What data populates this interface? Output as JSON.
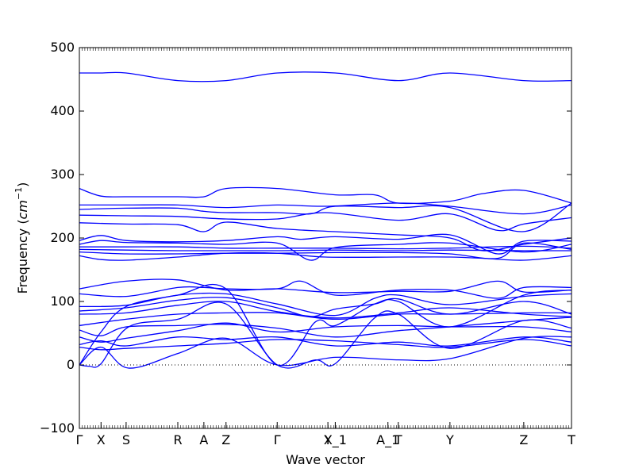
{
  "chart_data": {
    "type": "line",
    "title": "",
    "xlabel": "Wave vector",
    "ylabel_text": "Frequency (",
    "ylabel_unit": "cm",
    "ylabel_exp": "−1",
    "ylabel_close": ")",
    "ylim": [
      -100,
      500
    ],
    "yticks": [
      -100,
      0,
      100,
      200,
      300,
      400,
      500
    ],
    "xlim": [
      0,
      1
    ],
    "xticks": [
      {
        "label": "Γ",
        "x": 0.0
      },
      {
        "label": "X",
        "x": 0.044
      },
      {
        "label": "S",
        "x": 0.095
      },
      {
        "label": "R",
        "x": 0.2
      },
      {
        "label": "A",
        "x": 0.253
      },
      {
        "label": "Z",
        "x": 0.298
      },
      {
        "label": "Γ",
        "x": 0.402
      },
      {
        "label": "Y",
        "x": 0.505
      },
      {
        "label": "X_1",
        "x": 0.52
      },
      {
        "label": "A_1",
        "x": 0.627
      },
      {
        "label": "T",
        "x": 0.648
      },
      {
        "label": "Y",
        "x": 0.753
      },
      {
        "label": "Z",
        "x": 0.903
      },
      {
        "label": "T",
        "x": 1.0
      }
    ],
    "zero_line": 0,
    "line_color": "#0000ff",
    "series": [
      {
        "x": [
          0,
          0.044,
          0.095,
          0.2,
          0.298,
          0.402,
          0.52,
          0.648,
          0.753,
          0.903,
          1
        ],
        "y": [
          460,
          460,
          460,
          448,
          448,
          460,
          460,
          448,
          460,
          448,
          448
        ]
      },
      {
        "x": [
          0,
          0.044,
          0.095,
          0.2,
          0.253,
          0.298,
          0.402,
          0.52,
          0.6,
          0.648,
          0.753,
          0.82,
          0.903,
          1
        ],
        "y": [
          278,
          266,
          265,
          265,
          265,
          278,
          278,
          268,
          268,
          255,
          258,
          270,
          275,
          255
        ]
      },
      {
        "x": [
          0,
          0.095,
          0.2,
          0.298,
          0.402,
          0.5,
          0.648,
          0.753,
          0.903,
          1
        ],
        "y": [
          252,
          252,
          252,
          248,
          252,
          250,
          255,
          250,
          238,
          252
        ]
      },
      {
        "x": [
          0,
          0.095,
          0.2,
          0.253,
          0.298,
          0.402,
          0.47,
          0.52,
          0.648,
          0.753,
          0.9,
          1
        ],
        "y": [
          245,
          247,
          247,
          242,
          240,
          240,
          238,
          250,
          248,
          248,
          210,
          255
        ]
      },
      {
        "x": [
          0,
          0.095,
          0.2,
          0.298,
          0.402,
          0.5,
          0.648,
          0.753,
          0.85,
          0.903,
          1
        ],
        "y": [
          236,
          235,
          234,
          230,
          230,
          240,
          228,
          238,
          212,
          222,
          232
        ]
      },
      {
        "x": [
          0,
          0.095,
          0.2,
          0.253,
          0.298,
          0.402,
          0.52,
          0.648,
          0.753,
          0.82,
          0.903,
          1
        ],
        "y": [
          224,
          222,
          221,
          210,
          225,
          215,
          210,
          205,
          200,
          180,
          190,
          200
        ]
      },
      {
        "x": [
          0,
          0.044,
          0.095,
          0.2,
          0.298,
          0.402,
          0.45,
          0.52,
          0.648,
          0.753,
          0.85,
          0.903,
          1
        ],
        "y": [
          196,
          204,
          196,
          194,
          196,
          202,
          198,
          202,
          198,
          205,
          175,
          195,
          195
        ]
      },
      {
        "x": [
          0,
          0.044,
          0.095,
          0.2,
          0.298,
          0.402,
          0.47,
          0.52,
          0.648,
          0.753,
          0.903,
          1
        ],
        "y": [
          190,
          196,
          193,
          192,
          190,
          192,
          165,
          185,
          190,
          192,
          178,
          190
        ]
      },
      {
        "x": [
          0,
          0.095,
          0.2,
          0.298,
          0.402,
          0.52,
          0.648,
          0.753,
          0.903,
          1
        ],
        "y": [
          186,
          186,
          186,
          184,
          184,
          184,
          183,
          184,
          187,
          184
        ]
      },
      {
        "x": [
          0,
          0.095,
          0.2,
          0.298,
          0.402,
          0.52,
          0.648,
          0.753,
          0.903,
          1
        ],
        "y": [
          182,
          181,
          180,
          180,
          180,
          181,
          180,
          181,
          180,
          180
        ]
      },
      {
        "x": [
          0,
          0.095,
          0.2,
          0.298,
          0.402,
          0.52,
          0.648,
          0.753,
          0.85,
          0.903,
          1
        ],
        "y": [
          178,
          175,
          175,
          176,
          176,
          177,
          177,
          175,
          168,
          192,
          182
        ]
      },
      {
        "x": [
          0,
          0.044,
          0.095,
          0.2,
          0.298,
          0.402,
          0.5,
          0.648,
          0.753,
          0.82,
          0.903,
          1
        ],
        "y": [
          172,
          166,
          165,
          170,
          176,
          176,
          170,
          170,
          170,
          168,
          165,
          172
        ]
      },
      {
        "x": [
          0,
          0.095,
          0.2,
          0.298,
          0.402,
          0.52,
          0.648,
          0.753,
          0.85,
          0.903,
          1
        ],
        "y": [
          120,
          132,
          134,
          118,
          120,
          114,
          116,
          116,
          132,
          115,
          118
        ]
      },
      {
        "x": [
          0,
          0.095,
          0.2,
          0.253,
          0.298,
          0.402,
          0.45,
          0.52,
          0.648,
          0.753,
          0.85,
          0.903,
          1
        ],
        "y": [
          112,
          108,
          122,
          122,
          120,
          120,
          132,
          110,
          118,
          118,
          105,
          122,
          122
        ]
      },
      {
        "x": [
          0,
          0.095,
          0.2,
          0.298,
          0.402,
          0.52,
          0.6,
          0.648,
          0.753,
          0.903,
          1
        ],
        "y": [
          92,
          94,
          110,
          112,
          96,
          78,
          105,
          110,
          95,
          108,
          112
        ]
      },
      {
        "x": [
          0,
          0.095,
          0.2,
          0.298,
          0.402,
          0.47,
          0.52,
          0.6,
          0.648,
          0.753,
          0.903,
          1
        ],
        "y": [
          85,
          90,
          102,
          106,
          90,
          76,
          88,
          96,
          104,
          80,
          100,
          80
        ]
      },
      {
        "x": [
          0,
          0.095,
          0.2,
          0.298,
          0.402,
          0.52,
          0.648,
          0.753,
          0.903,
          1
        ],
        "y": [
          80,
          82,
          94,
          100,
          84,
          74,
          82,
          90,
          80,
          76
        ]
      },
      {
        "x": [
          0,
          0.095,
          0.2,
          0.298,
          0.402,
          0.52,
          0.648,
          0.753,
          0.903,
          1
        ],
        "y": [
          62,
          72,
          80,
          82,
          82,
          72,
          80,
          80,
          82,
          82
        ]
      },
      {
        "x": [
          0,
          0.044,
          0.095,
          0.2,
          0.298,
          0.402,
          0.52,
          0.648,
          0.753,
          0.903,
          1
        ],
        "y": [
          55,
          46,
          60,
          62,
          64,
          58,
          44,
          54,
          60,
          70,
          75
        ]
      },
      {
        "x": [
          0,
          0.044,
          0.095,
          0.2,
          0.298,
          0.402,
          0.52,
          0.648,
          0.753,
          0.903,
          1
        ],
        "y": [
          44,
          36,
          42,
          54,
          66,
          52,
          60,
          62,
          60,
          60,
          52
        ]
      },
      {
        "x": [
          0,
          0.044,
          0.095,
          0.2,
          0.298,
          0.402,
          0.52,
          0.648,
          0.753,
          0.903,
          1
        ],
        "y": [
          32,
          38,
          30,
          44,
          40,
          44,
          30,
          36,
          30,
          44,
          36
        ]
      },
      {
        "x": [
          0,
          0.044,
          0.095,
          0.2,
          0.298,
          0.402,
          0.52,
          0.648,
          0.753,
          0.903,
          1
        ],
        "y": [
          28,
          24,
          26,
          30,
          34,
          40,
          38,
          32,
          28,
          40,
          30
        ]
      },
      {
        "x": [
          0,
          0.044,
          0.1,
          0.2,
          0.298,
          0.402,
          0.52,
          0.648,
          0.753,
          0.903,
          1
        ],
        "y": [
          0,
          28,
          -5,
          18,
          42,
          0,
          12,
          8,
          10,
          42,
          44
        ]
      },
      {
        "x": [
          0,
          0.02,
          0.044,
          0.1,
          0.2,
          0.298,
          0.402,
          0.48,
          0.52,
          0.6,
          0.648,
          0.753,
          0.903,
          1
        ],
        "y": [
          0,
          -2,
          2,
          60,
          72,
          96,
          0,
          8,
          2,
          74,
          80,
          26,
          70,
          58
        ]
      },
      {
        "x": [
          0,
          0.044,
          0.095,
          0.2,
          0.298,
          0.402,
          0.48,
          0.52,
          0.6,
          0.648,
          0.753,
          0.903,
          1
        ],
        "y": [
          0,
          52,
          92,
          110,
          120,
          0,
          68,
          62,
          96,
          100,
          60,
          110,
          118
        ]
      }
    ]
  }
}
